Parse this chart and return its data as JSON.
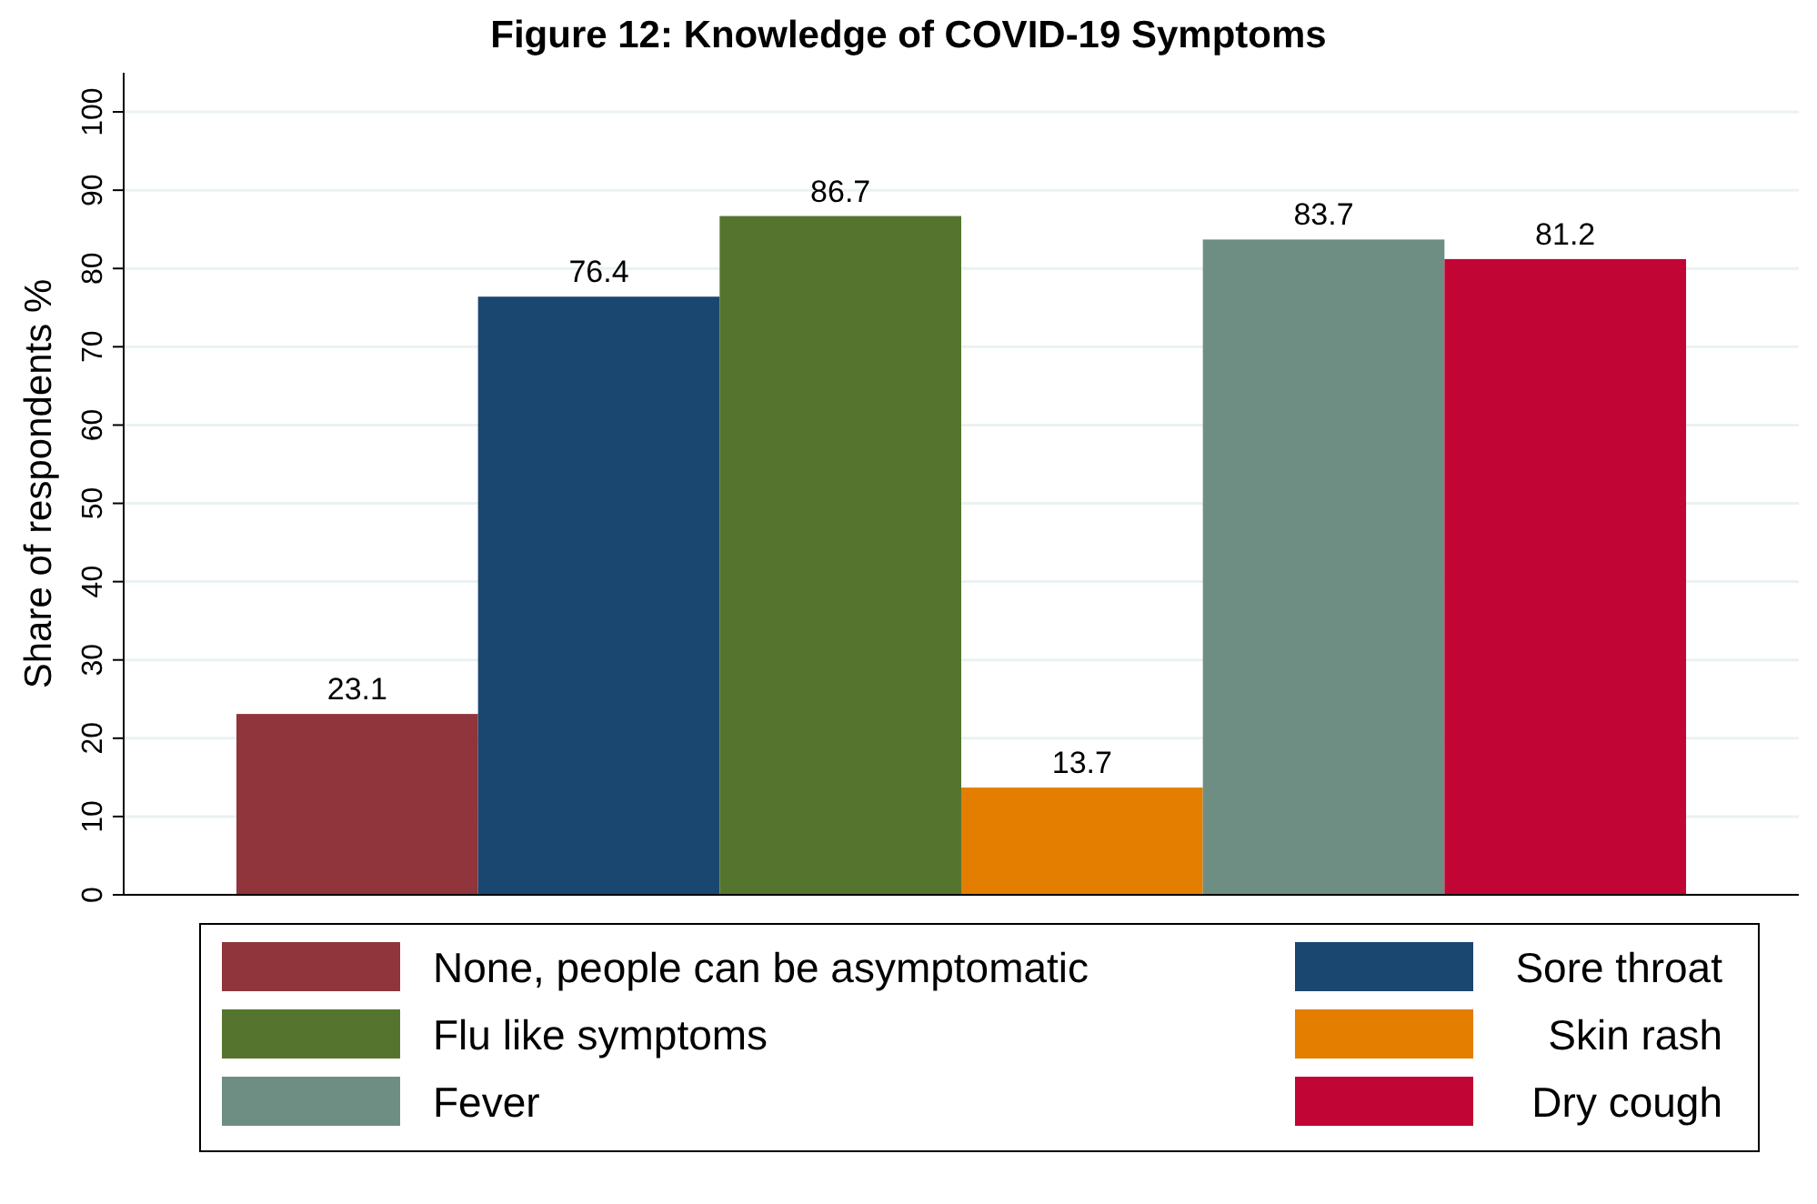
{
  "chart_data": {
    "type": "bar",
    "title": "Figure 12: Knowledge of COVID-19 Symptoms",
    "ylabel": "Share of respondents %",
    "categories": [
      null
    ],
    "series": [
      {
        "name": "None, people can be asymptomatic",
        "color": "#90353b",
        "values": [
          23.1
        ]
      },
      {
        "name": "Sore throat",
        "color": "#1a476f",
        "values": [
          76.4
        ]
      },
      {
        "name": "Flu like symptoms",
        "color": "#55752f",
        "values": [
          86.7
        ]
      },
      {
        "name": "Skin rash",
        "color": "#e37e00",
        "values": [
          13.7
        ]
      },
      {
        "name": "Fever",
        "color": "#6e8e84",
        "values": [
          83.7
        ]
      },
      {
        "name": "Dry cough",
        "color": "#c10534",
        "values": [
          81.2
        ]
      }
    ],
    "ylim": [
      0,
      105
    ],
    "yticks": [
      0,
      10,
      20,
      30,
      40,
      50,
      60,
      70,
      80,
      90,
      100
    ],
    "grid": "y",
    "data_labels": true,
    "legend": "bottom"
  }
}
